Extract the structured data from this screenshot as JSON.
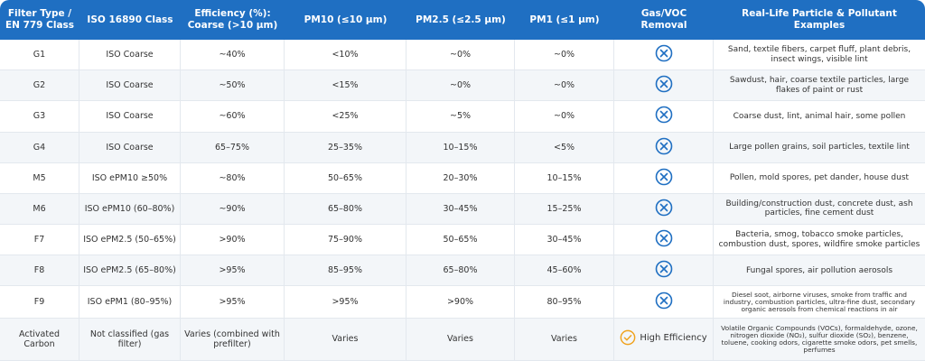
{
  "table": {
    "header": [
      "Filter Type / EN 779 Class",
      "ISO 16890 Class",
      "Efficiency (%): Coarse (>10 µm)",
      "PM10 (≤10 µm)",
      "PM2.5 (≤2.5 µm)",
      "PM1 (≤1 µm)",
      "Gas/VOC Removal",
      "Real-Life Particle & Pollutant Examples"
    ],
    "rows": [
      {
        "filter": "G1",
        "iso": "ISO Coarse",
        "efficiency": "~40%",
        "pm10": "<10%",
        "pm25": "~0%",
        "pm1": "~0%",
        "examples": "Sand, textile fibers, carpet fluff, plant debris, insect wings, visible lint"
      },
      {
        "filter": "G2",
        "iso": "ISO Coarse",
        "efficiency": "~50%",
        "pm10": "<15%",
        "pm25": "~0%",
        "pm1": "~0%",
        "examples": "Sawdust, hair, coarse textile particles, large flakes of paint or rust"
      },
      {
        "filter": "G3",
        "iso": "ISO Coarse",
        "efficiency": "~60%",
        "pm10": "<25%",
        "pm25": "~5%",
        "pm1": "~0%",
        "examples": "Coarse dust, lint, animal hair, some pollen"
      },
      {
        "filter": "G4",
        "iso": "ISO Coarse",
        "efficiency": "65–75%",
        "pm10": "25–35%",
        "pm25": "10–15%",
        "pm1": "<5%",
        "examples": "Large pollen grains, soil particles, textile lint"
      },
      {
        "filter": "M5",
        "iso": "ISO ePM10 ≥50%",
        "efficiency": "~80%",
        "pm10": "50–65%",
        "pm25": "20–30%",
        "pm1": "10–15%",
        "examples": "Pollen, mold spores, pet dander, house dust"
      },
      {
        "filter": "M6",
        "iso": "ISO ePM10 (60–80%)",
        "efficiency": "~90%",
        "pm10": "65–80%",
        "pm25": "30–45%",
        "pm1": "15–25%",
        "examples": "Building/construction dust, concrete dust, ash particles, fine cement dust"
      },
      {
        "filter": "F7",
        "iso": "ISO ePM2.5 (50–65%)",
        "efficiency": ">90%",
        "pm10": "75–90%",
        "pm25": "50–65%",
        "pm1": "30–45%",
        "examples": "Bacteria, smog, tobacco smoke particles, combustion dust, spores, wildfire smoke particles"
      },
      {
        "filter": "F8",
        "iso": "ISO ePM2.5 (65–80%)",
        "efficiency": ">95%",
        "pm10": "85–95%",
        "pm25": "65–80%",
        "pm1": "45–60%",
        "examples": "Fungal spores, air pollution aerosols"
      },
      {
        "filter": "F9",
        "iso": "ISO ePM1 (80–95%)",
        "efficiency": ">95%",
        "pm10": ">95%",
        "pm25": ">90%",
        "pm1": "80–95%",
        "examples": "Diesel soot, airborne viruses, smoke from traffic and industry, combustion particles, ultra-fine dust, secondary organic aerosols from chemical reactions in air"
      },
      {
        "filter": "Activated Carbon",
        "iso": "Not classified (gas filter)",
        "efficiency": "Varies (combined with prefilter)",
        "pm10": "Varies",
        "pm25": "Varies",
        "pm1": "Varies",
        "gas": "High Efficiency",
        "examples": "Volatile Organic Compounds (VOCs), formaldehyde, ozone, nitrogen dioxide (NO₂), sulfur dioxide (SO₂), benzene, toluene, cooking odors, cigarette smoke odors, pet smells, perfumes"
      }
    ]
  }
}
